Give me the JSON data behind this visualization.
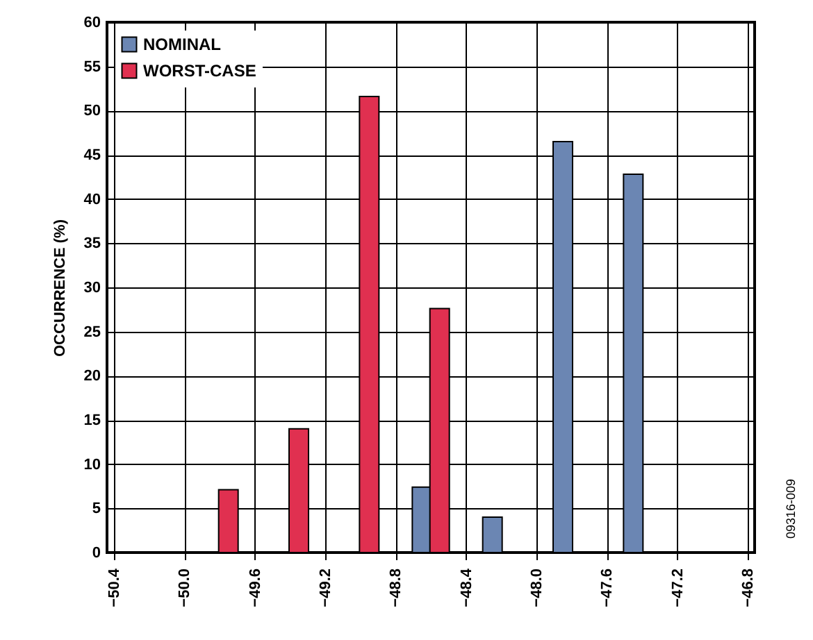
{
  "chart_data": {
    "type": "bar",
    "ylabel": "OCCURRENCE (%)",
    "series": [
      {
        "name": "NOMINAL",
        "color": "#6b86b3",
        "x": [
          -48.65,
          -48.25,
          -47.85,
          -47.45
        ],
        "values": [
          7.4,
          4.0,
          46.5,
          42.8
        ]
      },
      {
        "name": "WORST-CASE",
        "color": "#e03050",
        "x": [
          -49.75,
          -49.35,
          -48.95,
          -48.55
        ],
        "values": [
          7.1,
          14.0,
          51.6,
          27.6
        ]
      }
    ],
    "xlim": [
      -50.4,
      -46.8
    ],
    "xticks": [
      {
        "value": -50.4,
        "label": "−50.4"
      },
      {
        "value": -50.0,
        "label": "−50.0"
      },
      {
        "value": -49.6,
        "label": "−49.6"
      },
      {
        "value": -49.2,
        "label": "−49.2"
      },
      {
        "value": -48.8,
        "label": "−48.8"
      },
      {
        "value": -48.4,
        "label": "−48.4"
      },
      {
        "value": -48.0,
        "label": "−48.0"
      },
      {
        "value": -47.6,
        "label": "−47.6"
      },
      {
        "value": -47.2,
        "label": "−47.2"
      },
      {
        "value": -46.8,
        "label": "−46.8"
      }
    ],
    "ylim": [
      0,
      60
    ],
    "yticks": [
      0,
      5,
      10,
      15,
      20,
      25,
      30,
      35,
      40,
      45,
      50,
      55,
      60
    ],
    "grid": true,
    "legend": "top left",
    "annotations": [
      "09316-009"
    ]
  }
}
